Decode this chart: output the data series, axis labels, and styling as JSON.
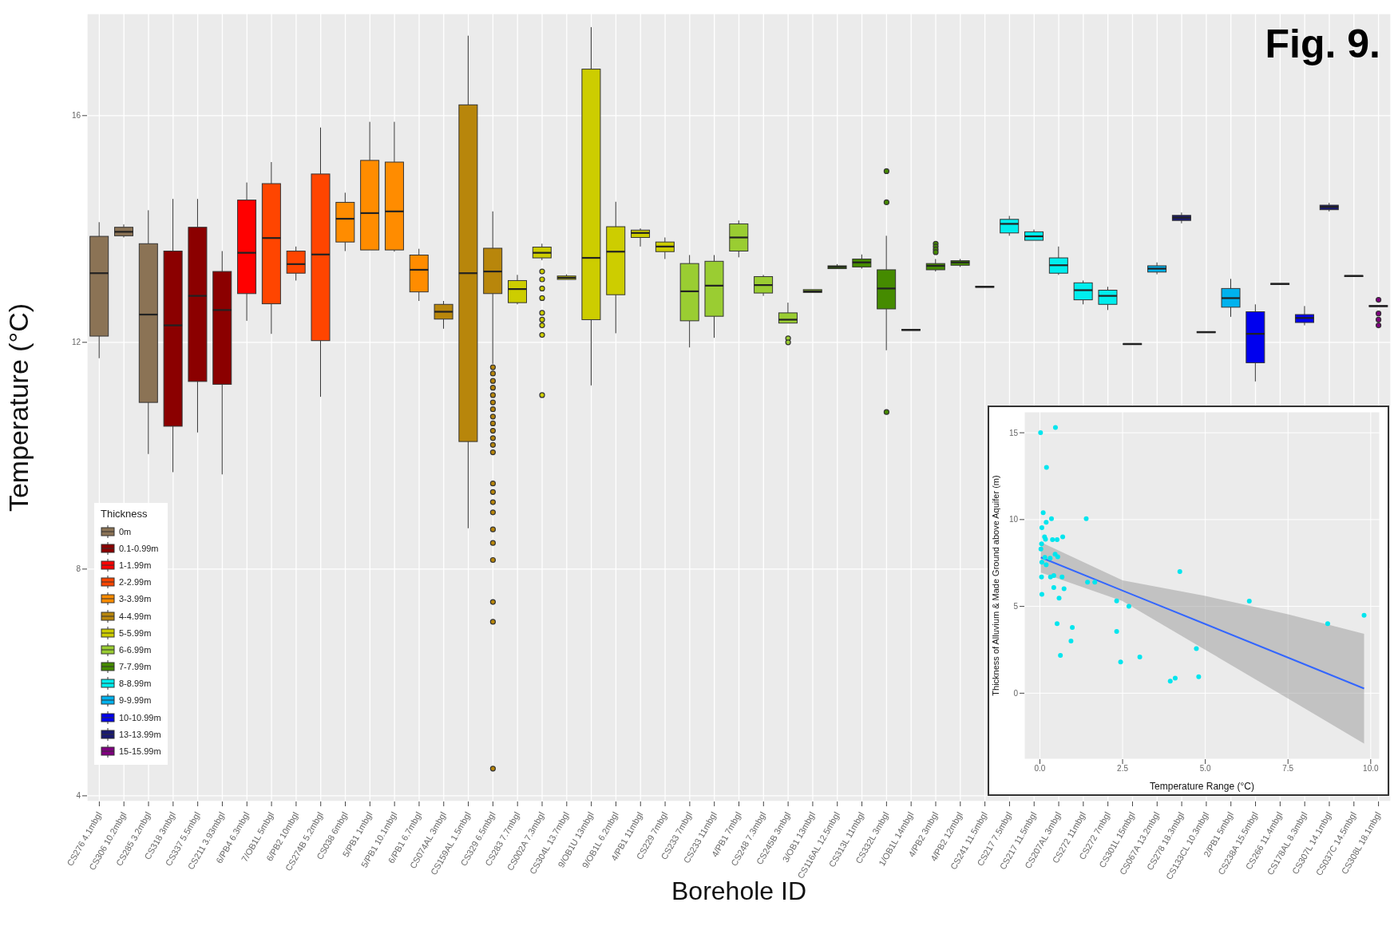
{
  "chart_data": [
    {
      "type": "box",
      "xlabel": "Borehole ID",
      "ylabel": "Temperature (°C)",
      "legend_title": "Thickness",
      "legend": "bottom left",
      "grid": true,
      "annotations": [
        "Fig. 9."
      ],
      "ylim": [
        3.9,
        17.8
      ],
      "yticks": [
        4,
        8,
        12,
        16
      ],
      "categories": [
        "CS276 4.1mbgl",
        "CS306 10.2mbgl",
        "CS285 3.2mbgl",
        "CS318 3mbgl",
        "CS337 5.5mbgl",
        "CS211 3.93mbgl",
        "6/PB4 6.3mbgl",
        "7/OB1L 5mbgl",
        "6/PB2 10mbgl",
        "CS274B 5.2mbgl",
        "CS038 6mbgl",
        "5/PB1 1mbgl",
        "5/PB1 10.1mbgl",
        "6/PB1 6.7mbgl",
        "CS074AL 3mbgl",
        "CS159AL 1.5mbgl",
        "CS329 6.5mbgl",
        "CS283 7.7mbgl",
        "CS002A 7.3mbgl",
        "CS304L 13.7mbgl",
        "9/OB1U 13mbgl",
        "9/OB1L 6.2mbgl",
        "4/PB1 11mbgl",
        "CS229 7mbgl",
        "CS233 7mbgl",
        "CS233 11mbgl",
        "4/PB1 7mbgl",
        "CS248 7.3mbgl",
        "CS245B 3mbgl",
        "3/OB1 13mbgl",
        "CS116AL 12.5mbgl",
        "CS313L 11mbgl",
        "CS332L 3mbgl",
        "1/OB1L 14mbgl",
        "4/PB2 3mbgl",
        "4/PB2 12mbgl",
        "CS241 11.5mbgl",
        "CS217 7.5mbgl",
        "CS217 11.5mbgl",
        "CS207AL 3mbgl",
        "CS272 11mbgl",
        "CS272 7mbgl",
        "CS301L 15mbgl",
        "CS067A 13.2mbgl",
        "CS278 18.3mbgl",
        "CS133CL 10.3mbgl",
        "2/PB1 5mbgl",
        "CS238A 15.5mbgl",
        "CS266 11.4mbgl",
        "CS178AL 8.3mbgl",
        "CS307L 14.1mbgl",
        "CS037C 14.5mbgl",
        "CS308L 18.1mbgl"
      ],
      "series": [
        {
          "name": "0m",
          "color": "#8b7355",
          "boxes": [
            {
              "low": 11.72,
              "q1": 12.11,
              "median": 13.22,
              "q3": 13.87,
              "high": 14.12
            },
            {
              "low": 13.85,
              "q1": 13.88,
              "median": 13.95,
              "q3": 14.03,
              "high": 14.08
            },
            {
              "low": 10.03,
              "q1": 10.94,
              "median": 12.49,
              "q3": 13.74,
              "high": 14.33
            },
            null,
            null,
            null,
            null,
            null,
            null,
            null,
            null,
            null,
            null,
            null,
            null,
            null,
            null,
            null,
            null,
            null,
            null,
            null,
            null,
            null,
            null,
            null,
            null,
            null,
            null,
            null,
            null,
            null,
            null,
            null,
            null,
            null,
            null,
            null,
            null,
            null,
            null,
            null,
            null,
            null,
            null,
            null,
            null,
            null,
            null,
            null,
            null,
            null,
            null
          ]
        },
        {
          "name": "0.1-0.99m",
          "color": "#8b0000",
          "boxes": [
            null,
            null,
            null,
            {
              "low": 9.71,
              "q1": 10.52,
              "median": 12.3,
              "q3": 13.61,
              "high": 14.53
            },
            {
              "low": 10.41,
              "q1": 11.31,
              "median": 12.82,
              "q3": 14.03,
              "high": 14.53
            },
            {
              "low": 9.67,
              "q1": 11.26,
              "median": 12.57,
              "q3": 13.25,
              "high": 13.61
            },
            null,
            null,
            null,
            null,
            null,
            null,
            null,
            null,
            null,
            null,
            null,
            null,
            null,
            null,
            null,
            null,
            null,
            null,
            null,
            null,
            null,
            null,
            null,
            null,
            null,
            null,
            null,
            null,
            null,
            null,
            null,
            null,
            null,
            null,
            null,
            null,
            null,
            null,
            null,
            null,
            null,
            null,
            null,
            null,
            null,
            null,
            null
          ]
        },
        {
          "name": "1-1.99m",
          "color": "#ff0000",
          "boxes": [
            null,
            null,
            null,
            null,
            null,
            null,
            {
              "low": 12.38,
              "q1": 12.86,
              "median": 13.58,
              "q3": 14.51,
              "high": 14.82
            },
            null,
            null,
            null,
            null,
            null,
            null,
            null,
            null,
            null,
            null,
            null,
            null,
            null,
            null,
            null,
            null,
            null,
            null,
            null,
            null,
            null,
            null,
            null,
            null,
            null,
            null,
            null,
            null,
            null,
            null,
            null,
            null,
            null,
            null,
            null,
            null,
            null,
            null,
            null,
            null,
            null,
            null,
            null,
            null,
            null,
            null
          ]
        },
        {
          "name": "2-2.99m",
          "color": "#ff4500",
          "boxes": [
            null,
            null,
            null,
            null,
            null,
            null,
            null,
            {
              "low": 12.15,
              "q1": 12.68,
              "median": 13.84,
              "q3": 14.8,
              "high": 15.18
            },
            {
              "low": 13.09,
              "q1": 13.22,
              "median": 13.38,
              "q3": 13.61,
              "high": 13.69
            },
            {
              "low": 11.04,
              "q1": 12.03,
              "median": 13.55,
              "q3": 14.97,
              "high": 15.79
            },
            null,
            null,
            null,
            null,
            null,
            null,
            null,
            null,
            null,
            null,
            null,
            null,
            null,
            null,
            null,
            null,
            null,
            null,
            null,
            null,
            null,
            null,
            null,
            null,
            null,
            null,
            null,
            null,
            null,
            null,
            null,
            null,
            null,
            null,
            null,
            null,
            null,
            null,
            null,
            null,
            null,
            null,
            null
          ]
        },
        {
          "name": "3-3.99m",
          "color": "#ff8c00",
          "boxes": [
            null,
            null,
            null,
            null,
            null,
            null,
            null,
            null,
            null,
            null,
            {
              "low": 13.61,
              "q1": 13.77,
              "median": 14.18,
              "q3": 14.47,
              "high": 14.64
            },
            {
              "low": 13.61,
              "q1": 13.63,
              "median": 14.28,
              "q3": 15.21,
              "high": 15.89
            },
            {
              "low": 13.6,
              "q1": 13.63,
              "median": 14.31,
              "q3": 15.18,
              "high": 15.89
            },
            {
              "low": 12.73,
              "q1": 12.89,
              "median": 13.28,
              "q3": 13.54,
              "high": 13.65
            },
            null,
            null,
            null,
            null,
            null,
            null,
            null,
            null,
            null,
            null,
            null,
            null,
            null,
            null,
            null,
            null,
            null,
            null,
            null,
            null,
            null,
            null,
            null,
            null,
            null,
            null,
            null,
            null,
            null,
            null,
            null,
            null,
            null,
            null,
            null,
            null,
            null,
            null,
            null
          ]
        },
        {
          "name": "4-4.99m",
          "color": "#b8860b",
          "boxes": [
            null,
            null,
            null,
            null,
            null,
            null,
            null,
            null,
            null,
            null,
            null,
            null,
            null,
            null,
            {
              "low": 12.24,
              "q1": 12.41,
              "median": 12.54,
              "q3": 12.67,
              "high": 12.73
            },
            {
              "low": 8.72,
              "q1": 10.25,
              "median": 13.22,
              "q3": 16.19,
              "high": 17.41
            },
            {
              "low": 11.62,
              "q1": 12.86,
              "median": 13.25,
              "q3": 13.66,
              "high": 14.31,
              "outliers": [
                11.56,
                11.45,
                11.32,
                11.2,
                11.07,
                10.94,
                10.82,
                10.69,
                10.57,
                10.44,
                10.31,
                10.19,
                10.06,
                9.51,
                9.36,
                9.18,
                9.0,
                8.7,
                8.46,
                8.16,
                7.42,
                7.07,
                4.48
              ]
            },
            null,
            null,
            null,
            null,
            null,
            null,
            null,
            null,
            null,
            null,
            null,
            null,
            null,
            null,
            null,
            null,
            null,
            null,
            null,
            null,
            null,
            null,
            null,
            null,
            null,
            null,
            null,
            null,
            null,
            null,
            null,
            null,
            null,
            null,
            null,
            null
          ]
        },
        {
          "name": "5-5.99m",
          "color": "#cdcd00",
          "boxes": [
            null,
            null,
            null,
            null,
            null,
            null,
            null,
            null,
            null,
            null,
            null,
            null,
            null,
            null,
            null,
            null,
            null,
            {
              "low": 12.67,
              "q1": 12.7,
              "median": 12.94,
              "q3": 13.09,
              "high": 13.19
            },
            {
              "low": 13.45,
              "q1": 13.49,
              "median": 13.58,
              "q3": 13.68,
              "high": 13.74,
              "outliers": [
                13.25,
                13.11,
                12.95,
                12.78,
                12.52,
                12.4,
                12.3,
                12.13,
                11.07
              ]
            },
            {
              "low": 13.1,
              "q1": 13.11,
              "median": 13.14,
              "q3": 13.17,
              "high": 13.2
            },
            {
              "low": 11.24,
              "q1": 12.4,
              "median": 13.49,
              "q3": 16.82,
              "high": 17.56
            },
            {
              "low": 12.16,
              "q1": 12.84,
              "median": 13.6,
              "q3": 14.04,
              "high": 14.48
            },
            {
              "low": 13.69,
              "q1": 13.85,
              "median": 13.93,
              "q3": 13.98,
              "high": 14.01
            },
            {
              "low": 13.47,
              "q1": 13.6,
              "median": 13.69,
              "q3": 13.77,
              "high": 13.85
            },
            null,
            null,
            null,
            null,
            null,
            null,
            null,
            null,
            null,
            null,
            null,
            null,
            null,
            null,
            null,
            null,
            null,
            null,
            null,
            null,
            null,
            null,
            null,
            null,
            null,
            null,
            null,
            null,
            null
          ]
        },
        {
          "name": "6-6.99m",
          "color": "#9acd32",
          "boxes": [
            null,
            null,
            null,
            null,
            null,
            null,
            null,
            null,
            null,
            null,
            null,
            null,
            null,
            null,
            null,
            null,
            null,
            null,
            null,
            null,
            null,
            null,
            null,
            null,
            {
              "low": 11.91,
              "q1": 12.38,
              "median": 12.9,
              "q3": 13.39,
              "high": 13.54
            },
            {
              "low": 12.08,
              "q1": 12.46,
              "median": 13.0,
              "q3": 13.43,
              "high": 13.54
            },
            {
              "low": 13.5,
              "q1": 13.61,
              "median": 13.85,
              "q3": 14.09,
              "high": 14.15
            },
            {
              "low": 12.82,
              "q1": 12.87,
              "median": 13.01,
              "q3": 13.16,
              "high": 13.19
            },
            {
              "low": 12.33,
              "q1": 12.34,
              "median": 12.4,
              "q3": 12.52,
              "high": 12.7,
              "outliers": [
                12.07,
                12.0
              ]
            },
            {
              "low": 12.86,
              "q1": 12.88,
              "median": 12.9,
              "q3": 12.93,
              "high": 12.95
            },
            null,
            null,
            null,
            null,
            null,
            null,
            null,
            null,
            null,
            null,
            null,
            null,
            null,
            null,
            null,
            null,
            null,
            null,
            null,
            null,
            null,
            null,
            null
          ]
        },
        {
          "name": "7-7.99m",
          "color": "#458b00",
          "boxes": [
            null,
            null,
            null,
            null,
            null,
            null,
            null,
            null,
            null,
            null,
            null,
            null,
            null,
            null,
            null,
            null,
            null,
            null,
            null,
            null,
            null,
            null,
            null,
            null,
            null,
            null,
            null,
            null,
            null,
            null,
            {
              "low": 13.28,
              "q1": 13.3,
              "median": 13.33,
              "q3": 13.35,
              "high": 13.38
            },
            {
              "low": 13.3,
              "q1": 13.33,
              "median": 13.41,
              "q3": 13.47,
              "high": 13.55
            },
            {
              "low": 11.86,
              "q1": 12.59,
              "median": 12.95,
              "q3": 13.28,
              "high": 13.88,
              "outliers": [
                15.02,
                14.47,
                10.77
              ]
            },
            {
              "low": 12.2,
              "q1": 12.21,
              "median": 12.22,
              "q3": 12.23,
              "high": 12.24
            },
            {
              "low": 13.25,
              "q1": 13.28,
              "median": 13.35,
              "q3": 13.39,
              "high": 13.47,
              "outliers": [
                13.74,
                13.69,
                13.64,
                13.59
              ]
            },
            {
              "low": 13.33,
              "q1": 13.36,
              "median": 13.41,
              "q3": 13.44,
              "high": 13.47
            },
            {
              "low": 12.96,
              "q1": 12.97,
              "median": 12.98,
              "q3": 12.99,
              "high": 13.0
            },
            null,
            null,
            null,
            null,
            null,
            null,
            null,
            null,
            null,
            null,
            null,
            null,
            null,
            null,
            null,
            null
          ]
        },
        {
          "name": "8-8.99m",
          "color": "#00eeee",
          "boxes": [
            null,
            null,
            null,
            null,
            null,
            null,
            null,
            null,
            null,
            null,
            null,
            null,
            null,
            null,
            null,
            null,
            null,
            null,
            null,
            null,
            null,
            null,
            null,
            null,
            null,
            null,
            null,
            null,
            null,
            null,
            null,
            null,
            null,
            null,
            null,
            null,
            null,
            {
              "low": 13.88,
              "q1": 13.93,
              "median": 14.09,
              "q3": 14.17,
              "high": 14.23
            },
            {
              "low": 13.79,
              "q1": 13.8,
              "median": 13.87,
              "q3": 13.95,
              "high": 13.99
            },
            {
              "low": 13.19,
              "q1": 13.22,
              "median": 13.36,
              "q3": 13.49,
              "high": 13.69
            },
            {
              "low": 12.67,
              "q1": 12.75,
              "median": 12.92,
              "q3": 13.05,
              "high": 13.09
            },
            {
              "low": 12.57,
              "q1": 12.67,
              "median": 12.82,
              "q3": 12.92,
              "high": 12.98
            },
            {
              "low": 11.95,
              "q1": 11.96,
              "median": 11.97,
              "q3": 11.98,
              "high": 11.99
            },
            null,
            null,
            null,
            null,
            null,
            null,
            null,
            null,
            null,
            null
          ]
        },
        {
          "name": "9-9.99m",
          "color": "#00b2ee",
          "boxes": [
            null,
            null,
            null,
            null,
            null,
            null,
            null,
            null,
            null,
            null,
            null,
            null,
            null,
            null,
            null,
            null,
            null,
            null,
            null,
            null,
            null,
            null,
            null,
            null,
            null,
            null,
            null,
            null,
            null,
            null,
            null,
            null,
            null,
            null,
            null,
            null,
            null,
            null,
            null,
            null,
            null,
            null,
            null,
            {
              "low": 13.2,
              "q1": 13.24,
              "median": 13.3,
              "q3": 13.35,
              "high": 13.41
            },
            null,
            null,
            {
              "low": 12.45,
              "q1": 12.62,
              "median": 12.78,
              "q3": 12.95,
              "high": 13.12
            },
            null,
            null,
            null,
            null,
            null,
            null
          ]
        },
        {
          "name": "10-10.99m",
          "color": "#0000ee",
          "boxes": [
            null,
            null,
            null,
            null,
            null,
            null,
            null,
            null,
            null,
            null,
            null,
            null,
            null,
            null,
            null,
            null,
            null,
            null,
            null,
            null,
            null,
            null,
            null,
            null,
            null,
            null,
            null,
            null,
            null,
            null,
            null,
            null,
            null,
            null,
            null,
            null,
            null,
            null,
            null,
            null,
            null,
            null,
            null,
            null,
            null,
            null,
            null,
            {
              "low": 11.31,
              "q1": 11.64,
              "median": 12.15,
              "q3": 12.54,
              "high": 12.67
            },
            null,
            {
              "low": 12.3,
              "q1": 12.35,
              "median": 12.43,
              "q3": 12.49,
              "high": 12.64
            },
            null,
            null,
            null
          ]
        },
        {
          "name": "13-13.99m",
          "color": "#191970",
          "boxes": [
            null,
            null,
            null,
            null,
            null,
            null,
            null,
            null,
            null,
            null,
            null,
            null,
            null,
            null,
            null,
            null,
            null,
            null,
            null,
            null,
            null,
            null,
            null,
            null,
            null,
            null,
            null,
            null,
            null,
            null,
            null,
            null,
            null,
            null,
            null,
            null,
            null,
            null,
            null,
            null,
            null,
            null,
            null,
            null,
            {
              "low": 14.1,
              "q1": 14.15,
              "median": 14.2,
              "q3": 14.24,
              "high": 14.29
            },
            {
              "low": 12.16,
              "q1": 12.17,
              "median": 12.18,
              "q3": 12.19,
              "high": 12.2
            },
            null,
            null,
            {
              "low": 13.01,
              "q1": 13.02,
              "median": 13.03,
              "q3": 13.04,
              "high": 13.05
            },
            null,
            {
              "low": 14.31,
              "q1": 14.34,
              "median": 14.39,
              "q3": 14.42,
              "high": 14.46
            },
            null,
            null
          ]
        },
        {
          "name": "15-15.99m",
          "color": "#800080",
          "boxes": [
            null,
            null,
            null,
            null,
            null,
            null,
            null,
            null,
            null,
            null,
            null,
            null,
            null,
            null,
            null,
            null,
            null,
            null,
            null,
            null,
            null,
            null,
            null,
            null,
            null,
            null,
            null,
            null,
            null,
            null,
            null,
            null,
            null,
            null,
            null,
            null,
            null,
            null,
            null,
            null,
            null,
            null,
            null,
            null,
            null,
            null,
            null,
            null,
            null,
            null,
            null,
            {
              "low": 13.15,
              "q1": 13.16,
              "median": 13.17,
              "q3": 13.18,
              "high": 13.19
            },
            {
              "low": 12.62,
              "q1": 12.63,
              "median": 12.64,
              "q3": 12.65,
              "high": 12.66,
              "outliers": [
                12.75,
                12.51,
                12.4,
                12.3
              ]
            }
          ]
        }
      ]
    },
    {
      "type": "scatter",
      "xlabel": "Temperature Range (°C)",
      "ylabel": "Thickness of Alluvium & Made Ground above Aquifer (m)",
      "grid": true,
      "xlim": [
        -0.47,
        10.27
      ],
      "xticks": [
        {
          "value": 0,
          "label": "0.0"
        },
        {
          "value": 2.5,
          "label": "2.5"
        },
        {
          "value": 5,
          "label": "5.0"
        },
        {
          "value": 7.5,
          "label": "7.5"
        },
        {
          "value": 10,
          "label": "10.0"
        }
      ],
      "ylim": [
        -3.8,
        16.2
      ],
      "yticks": [
        0,
        5,
        10,
        15
      ],
      "series": [
        {
          "type": "scatter",
          "color": "#00e5ee",
          "x": [
            0.02,
            0.47,
            0.2,
            0.1,
            0.35,
            1.4,
            0.19,
            0.06,
            0.14,
            0.17,
            0.38,
            0.52,
            0.69,
            0.05,
            0.03,
            0.46,
            0.54,
            0.31,
            0.15,
            0.06,
            0.19,
            0.05,
            0.32,
            0.42,
            0.67,
            1.44,
            1.66,
            4.23,
            0.06,
            0.42,
            0.73,
            0.58,
            2.32,
            2.69,
            6.33,
            9.8,
            8.7,
            0.52,
            0.98,
            2.32,
            0.94,
            0.62,
            3.02,
            2.44,
            4.73,
            4.8,
            4.09,
            3.94
          ],
          "values": [
            15.0,
            15.3,
            13.0,
            10.4,
            10.05,
            10.05,
            9.84,
            9.53,
            9.0,
            8.87,
            8.84,
            8.84,
            9.0,
            8.6,
            8.3,
            8.0,
            7.85,
            7.77,
            7.82,
            7.55,
            7.39,
            6.7,
            6.7,
            6.78,
            6.7,
            6.4,
            6.4,
            7.01,
            5.7,
            6.09,
            6.02,
            5.48,
            5.32,
            5.0,
            5.3,
            4.49,
            4.0,
            4.0,
            3.79,
            3.56,
            3.01,
            2.18,
            2.09,
            1.8,
            2.57,
            0.95,
            0.87,
            0.7
          ]
        },
        {
          "type": "line",
          "color": "#3366ff",
          "x": [
            0.03,
            2.5,
            5,
            7.5,
            9.8
          ],
          "values": [
            7.82,
            5.91,
            3.98,
            2.05,
            0.27
          ],
          "lower": [
            6.95,
            5.3,
            2.5,
            -0.3,
            -2.9
          ],
          "upper": [
            8.69,
            6.5,
            5.6,
            4.55,
            3.42
          ]
        }
      ]
    }
  ]
}
